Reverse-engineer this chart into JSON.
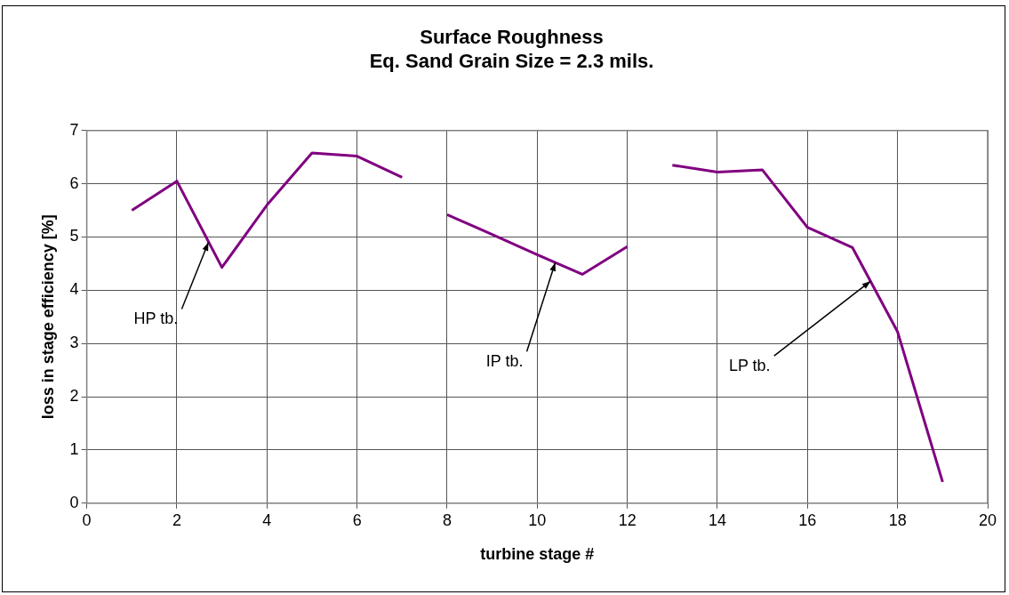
{
  "chart_data": {
    "type": "line",
    "title": "Surface Roughness",
    "subtitle": "Eq. Sand Grain Size = 2.3 mils.",
    "xlabel": "turbine stage #",
    "ylabel": "loss in stage efficiency [%]",
    "series": [
      {
        "color": "#800080",
        "x": [
          1,
          2,
          3,
          4,
          5,
          6,
          7
        ],
        "values": [
          5.5,
          6.05,
          4.43,
          5.6,
          6.58,
          6.52,
          6.12
        ]
      },
      {
        "color": "#800080",
        "x": [
          8,
          9,
          10,
          11,
          12
        ],
        "values": [
          5.42,
          5.05,
          4.67,
          4.3,
          4.82
        ]
      },
      {
        "color": "#800080",
        "x": [
          13,
          14,
          15,
          16,
          17,
          18,
          19
        ],
        "values": [
          6.35,
          6.22,
          6.26,
          5.18,
          4.8,
          3.22,
          0.4
        ]
      }
    ],
    "annotations": [
      {
        "text": "HP tb.",
        "x": 2.7,
        "y": 4.9
      },
      {
        "text": "IP tb.",
        "x": 10.4,
        "y": 4.52
      },
      {
        "text": "LP tb.",
        "x": 17.4,
        "y": 4.17
      }
    ],
    "xlim": [
      0,
      20
    ],
    "xticks": [
      0,
      2,
      4,
      6,
      8,
      10,
      12,
      14,
      16,
      18,
      20
    ],
    "ylim": [
      0,
      7
    ],
    "yticks": [
      0,
      1,
      2,
      3,
      4,
      5,
      6,
      7
    ],
    "grid": true,
    "legend": false,
    "marker": "none",
    "line_style": "solid"
  }
}
